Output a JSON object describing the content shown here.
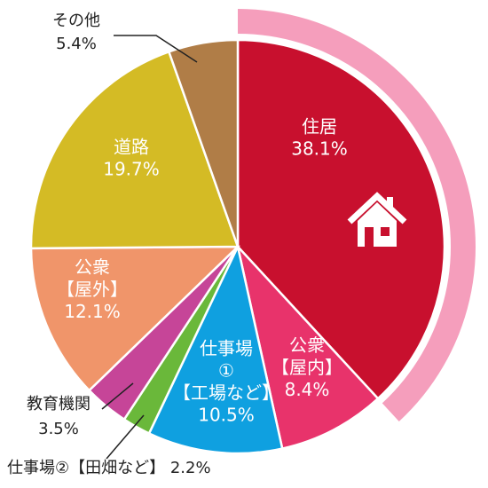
{
  "chart_data": {
    "type": "pie",
    "start": "12 o'clock, clockwise",
    "slices": [
      {
        "label": "住居",
        "value": 38.1,
        "value_text": "38.1%",
        "color": "#c8102e",
        "highlight": true,
        "icon": "house-icon"
      },
      {
        "label": "公衆\n【屋内】",
        "value": 8.4,
        "value_text": "8.4%",
        "color": "#e8336b"
      },
      {
        "label": "仕事場\n①\n【工場など】",
        "value": 10.5,
        "value_text": "10.5%",
        "color": "#0fa0e0"
      },
      {
        "label": "仕事場②【田畑など】",
        "value": 2.2,
        "value_text": "2.2%",
        "color": "#6ab83a",
        "label_position": "outside"
      },
      {
        "label": "教育機関",
        "value": 3.5,
        "value_text": "3.5%",
        "color": "#c64598",
        "label_position": "outside"
      },
      {
        "label": "公衆\n【屋外】",
        "value": 12.1,
        "value_text": "12.1%",
        "color": "#f0956a"
      },
      {
        "label": "道路",
        "value": 19.7,
        "value_text": "19.7%",
        "color": "#d4bb25"
      },
      {
        "label": "その他",
        "value": 5.4,
        "value_text": "5.4%",
        "color": "#b07d47",
        "label_position": "outside"
      }
    ],
    "highlight_ring_color": "#f59ebc"
  }
}
